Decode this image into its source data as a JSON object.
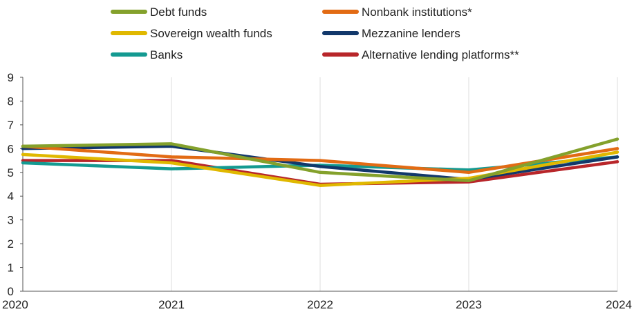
{
  "chart_data": {
    "type": "line",
    "title": "",
    "xlabel": "",
    "ylabel": "",
    "x": [
      "2020",
      "2021",
      "2022",
      "2023",
      "2024"
    ],
    "xlim": [
      2020,
      2024
    ],
    "ylim": [
      0,
      9
    ],
    "yticks": [
      0,
      1,
      2,
      3,
      4,
      5,
      6,
      7,
      8,
      9
    ],
    "grid": "vertical",
    "legend_position": "top",
    "series": [
      {
        "name": "Debt funds",
        "color": "#84a12c",
        "values": [
          6.1,
          6.2,
          5.0,
          4.65,
          6.4
        ]
      },
      {
        "name": "Nonbank institutions*",
        "color": "#e26b14",
        "values": [
          6.1,
          5.65,
          5.5,
          5.0,
          6.0
        ]
      },
      {
        "name": "Sovereign wealth funds",
        "color": "#e0b800",
        "values": [
          5.75,
          5.4,
          4.45,
          4.75,
          5.85
        ]
      },
      {
        "name": "Mezzanine lenders",
        "color": "#12386b",
        "values": [
          6.0,
          6.1,
          5.25,
          4.7,
          5.65
        ]
      },
      {
        "name": "Banks",
        "color": "#149a91",
        "values": [
          5.4,
          5.15,
          5.3,
          5.1,
          5.65
        ]
      },
      {
        "name": "Alternative lending platforms**",
        "color": "#b8262a",
        "values": [
          5.5,
          5.5,
          4.5,
          4.6,
          5.45
        ]
      }
    ]
  }
}
